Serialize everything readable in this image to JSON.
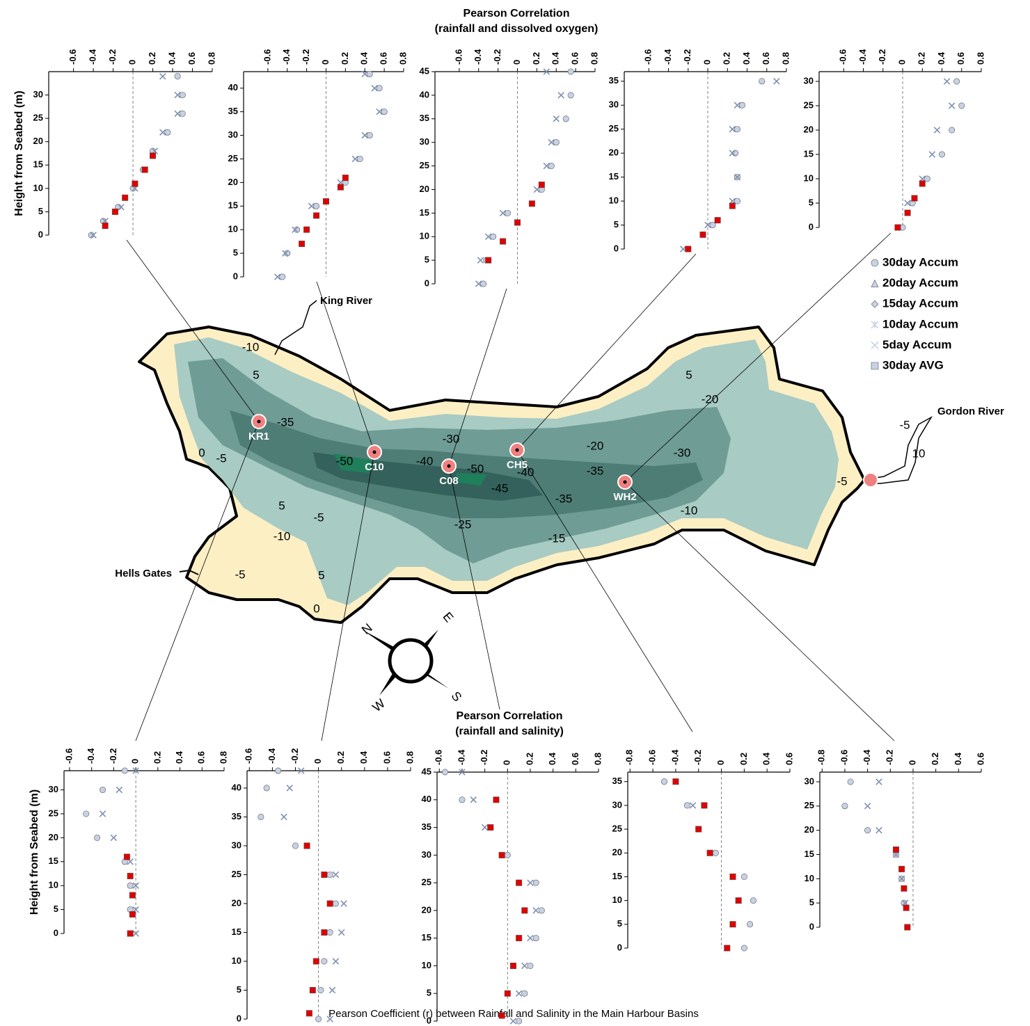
{
  "title_top": [
    "Pearson Correlation",
    "(rainfall and dissolved oxygen)"
  ],
  "title_bottom": [
    "Pearson Correlation",
    "(rainfall and salinity)"
  ],
  "caption": "Pearson Coefficient (r) between Rainfall and Salinity in the Main Harbour Basins",
  "legend": [
    {
      "name": "30day Accum",
      "marker": "circle"
    },
    {
      "name": "20day Accum",
      "marker": "triangle"
    },
    {
      "name": "15day Accum",
      "marker": "diamond"
    },
    {
      "name": "10day Accum",
      "marker": "asterisk"
    },
    {
      "name": "5day Accum",
      "marker": "x"
    },
    {
      "name": "30day AVG",
      "marker": "square"
    }
  ],
  "map": {
    "stations": [
      "KR1",
      "C10",
      "C08",
      "CH5",
      "WH2"
    ],
    "places": [
      "King River",
      "Gordon River",
      "Hells Gates"
    ],
    "contours": [
      "-35",
      "-30",
      "-20",
      "-40",
      "-50",
      "-50",
      "-45",
      "-40",
      "-35",
      "-30",
      "-35",
      "-25",
      "-15",
      "-10",
      "-5",
      "-20",
      "-5",
      "-10",
      "-5",
      "5",
      "-5",
      "5",
      "0",
      "0",
      "5",
      "10",
      "-5",
      "-10",
      "5"
    ],
    "compass": [
      "N",
      "E",
      "S",
      "W"
    ]
  },
  "chart_data": [
    {
      "type": "scatter",
      "ylabel": "Height from Seabed (m)",
      "xlim": [
        -0.85,
        0.8
      ],
      "xticks": [
        -0.6,
        -0.4,
        -0.2,
        0,
        0.2,
        0.4,
        0.6,
        0.8
      ],
      "ylim": [
        0,
        35
      ],
      "yticks": [
        0,
        5,
        10,
        15,
        20,
        25,
        30
      ],
      "series": [
        {
          "name": "30day Accum",
          "color": "#c8d2e6",
          "x": [
            -0.42,
            -0.3,
            -0.15,
            0.0,
            0.1,
            0.2,
            0.35,
            0.5,
            0.5,
            0.45
          ],
          "y": [
            0,
            3,
            6,
            10,
            14,
            18,
            22,
            26,
            30,
            34
          ]
        },
        {
          "name": "5day Accum",
          "color": "#8090b0",
          "x": [
            -0.4,
            -0.28,
            -0.12,
            0.02,
            0.12,
            0.22,
            0.3,
            0.45,
            0.45,
            0.3
          ],
          "y": [
            0,
            3,
            6,
            10,
            14,
            18,
            22,
            26,
            30,
            34
          ]
        },
        {
          "name": "30day AVG",
          "color": "#e00000",
          "x": [
            -0.28,
            -0.18,
            -0.08,
            0.02,
            0.12,
            0.2
          ],
          "y": [
            2,
            5,
            8,
            11,
            14,
            17
          ]
        }
      ]
    },
    {
      "type": "scatter",
      "xlim": [
        -0.85,
        0.8
      ],
      "xticks": [
        -0.6,
        -0.4,
        -0.2,
        0,
        0.2,
        0.4,
        0.6,
        0.8
      ],
      "ylim": [
        0,
        43.5
      ],
      "yticks": [
        0,
        5,
        10,
        15,
        20,
        25,
        30,
        35,
        40
      ],
      "series": [
        {
          "name": "30day Accum",
          "color": "#c8d2e6",
          "x": [
            -0.45,
            -0.4,
            -0.3,
            -0.1,
            0.2,
            0.35,
            0.45,
            0.6,
            0.55,
            0.45
          ],
          "y": [
            0,
            5,
            10,
            15,
            20,
            25,
            30,
            35,
            40,
            43
          ]
        },
        {
          "name": "5day Accum",
          "color": "#8090b0",
          "x": [
            -0.5,
            -0.42,
            -0.32,
            -0.15,
            0.15,
            0.3,
            0.4,
            0.55,
            0.5,
            0.4
          ],
          "y": [
            0,
            5,
            10,
            15,
            20,
            25,
            30,
            35,
            40,
            43
          ]
        },
        {
          "name": "30day AVG",
          "color": "#e00000",
          "x": [
            -0.25,
            -0.2,
            -0.1,
            0.0,
            0.15,
            0.2
          ],
          "y": [
            7,
            10,
            13,
            16,
            19,
            21
          ]
        }
      ]
    },
    {
      "type": "scatter",
      "xlim": [
        -0.85,
        0.8
      ],
      "xticks": [
        -0.6,
        -0.4,
        -0.2,
        0,
        0.2,
        0.4,
        0.6,
        0.8
      ],
      "ylim": [
        0,
        45
      ],
      "yticks": [
        0,
        5,
        10,
        15,
        20,
        25,
        30,
        35,
        40,
        45
      ],
      "series": [
        {
          "name": "30day Accum",
          "color": "#c8d2e6",
          "x": [
            -0.35,
            -0.32,
            -0.25,
            -0.1,
            0.25,
            0.35,
            0.4,
            0.5,
            0.55,
            0.55
          ],
          "y": [
            0,
            5,
            10,
            15,
            20,
            25,
            30,
            35,
            40,
            45
          ]
        },
        {
          "name": "5day Accum",
          "color": "#8090b0",
          "x": [
            -0.4,
            -0.38,
            -0.3,
            -0.15,
            0.2,
            0.3,
            0.35,
            0.4,
            0.45,
            0.3
          ],
          "y": [
            0,
            5,
            10,
            15,
            20,
            25,
            30,
            35,
            40,
            45
          ]
        },
        {
          "name": "30day AVG",
          "color": "#e00000",
          "x": [
            -0.3,
            -0.15,
            0,
            0.15,
            0.25
          ],
          "y": [
            5,
            9,
            13,
            17,
            21
          ]
        }
      ]
    },
    {
      "type": "scatter",
      "xlim": [
        -0.85,
        0.8
      ],
      "xticks": [
        -0.6,
        -0.4,
        -0.2,
        0,
        0.2,
        0.4,
        0.6,
        0.8
      ],
      "ylim": [
        0,
        37
      ],
      "yticks": [
        0,
        5,
        10,
        15,
        20,
        25,
        30,
        35
      ],
      "series": [
        {
          "name": "30day Accum",
          "color": "#c8d2e6",
          "x": [
            -0.2,
            0.05,
            0.3,
            0.3,
            0.28,
            0.3,
            0.35,
            0.55
          ],
          "y": [
            0,
            5,
            10,
            15,
            20,
            25,
            30,
            35
          ]
        },
        {
          "name": "5day Accum",
          "color": "#8090b0",
          "x": [
            -0.25,
            0,
            0.25,
            0.3,
            0.25,
            0.25,
            0.3,
            0.7
          ],
          "y": [
            0,
            5,
            10,
            15,
            20,
            25,
            30,
            35
          ]
        },
        {
          "name": "30day AVG",
          "color": "#e00000",
          "x": [
            -0.2,
            -0.05,
            0.1,
            0.25
          ],
          "y": [
            0,
            3,
            6,
            9
          ]
        }
      ]
    },
    {
      "type": "scatter",
      "xlim": [
        -0.85,
        0.8
      ],
      "xticks": [
        -0.6,
        -0.4,
        -0.2,
        0,
        0.2,
        0.4,
        0.6,
        0.8
      ],
      "ylim": [
        0,
        32
      ],
      "yticks": [
        0,
        5,
        10,
        15,
        20,
        25,
        30
      ],
      "series": [
        {
          "name": "30day Accum",
          "color": "#c8d2e6",
          "x": [
            0,
            0.1,
            0.25,
            0.4,
            0.5,
            0.6,
            0.55
          ],
          "y": [
            0,
            5,
            10,
            15,
            20,
            25,
            30
          ]
        },
        {
          "name": "5day Accum",
          "color": "#8090b0",
          "x": [
            -0.05,
            0.05,
            0.2,
            0.3,
            0.35,
            0.5,
            0.45
          ],
          "y": [
            0,
            5,
            10,
            15,
            20,
            25,
            30
          ]
        },
        {
          "name": "30day AVG",
          "color": "#e00000",
          "x": [
            -0.05,
            0.05,
            0.12,
            0.2
          ],
          "y": [
            0,
            3,
            6,
            9
          ]
        }
      ]
    },
    {
      "type": "scatter",
      "ylabel": "Height from Seabed (m)",
      "xlim": [
        -0.65,
        0.8
      ],
      "xticks": [
        -0.6,
        -0.4,
        -0.2,
        0,
        0.2,
        0.4,
        0.6,
        0.8
      ],
      "ylim": [
        0,
        34
      ],
      "yticks": [
        0,
        5,
        10,
        15,
        20,
        25,
        30
      ],
      "series": [
        {
          "name": "30day Accum",
          "color": "#c8d2e6",
          "x": [
            -0.05,
            -0.05,
            -0.05,
            -0.1,
            -0.35,
            -0.45,
            -0.3,
            -0.1
          ],
          "y": [
            0,
            5,
            10,
            15,
            20,
            25,
            30,
            34
          ]
        },
        {
          "name": "5day Accum",
          "color": "#8090b0",
          "x": [
            0,
            0,
            0,
            -0.05,
            -0.2,
            -0.3,
            -0.15,
            0
          ],
          "y": [
            0,
            5,
            10,
            15,
            20,
            25,
            30,
            34
          ]
        },
        {
          "name": "30day AVG",
          "color": "#e00000",
          "x": [
            -0.05,
            -0.03,
            -0.03,
            -0.05,
            -0.08
          ],
          "y": [
            0,
            4,
            8,
            12,
            16
          ]
        }
      ]
    },
    {
      "type": "scatter",
      "xlim": [
        -0.62,
        0.8
      ],
      "xticks": [
        -0.6,
        -0.4,
        -0.2,
        0,
        0.2,
        0.4,
        0.6,
        0.8
      ],
      "ylim": [
        0,
        43
      ],
      "yticks": [
        0,
        5,
        10,
        15,
        20,
        25,
        30,
        35,
        40
      ],
      "series": [
        {
          "name": "30day Accum",
          "color": "#c8d2e6",
          "x": [
            0,
            0.02,
            0.05,
            0.1,
            0.15,
            0.1,
            -0.2,
            -0.5,
            -0.45,
            -0.35
          ],
          "y": [
            0,
            5,
            10,
            15,
            20,
            25,
            30,
            35,
            40,
            43
          ]
        },
        {
          "name": "5day Accum",
          "color": "#8090b0",
          "x": [
            0.1,
            0.12,
            0.15,
            0.2,
            0.22,
            0.15,
            -0.1,
            -0.3,
            -0.25,
            -0.15
          ],
          "y": [
            0,
            5,
            10,
            15,
            20,
            25,
            30,
            35,
            40,
            43
          ]
        },
        {
          "name": "30day AVG",
          "color": "#e00000",
          "x": [
            -0.08,
            -0.05,
            -0.02,
            0.05,
            0.1,
            0.05,
            -0.1
          ],
          "y": [
            1,
            5,
            10,
            15,
            20,
            25,
            30
          ]
        }
      ]
    },
    {
      "type": "scatter",
      "xlim": [
        -0.62,
        0.8
      ],
      "xticks": [
        -0.6,
        -0.4,
        -0.2,
        0,
        0.2,
        0.4,
        0.6,
        0.8
      ],
      "ylim": [
        0,
        45
      ],
      "yticks": [
        0,
        5,
        10,
        15,
        20,
        25,
        30,
        35,
        40,
        45
      ],
      "series": [
        {
          "name": "30day Accum",
          "color": "#c8d2e6",
          "x": [
            0.1,
            0.15,
            0.2,
            0.25,
            0.3,
            0.25,
            0.0,
            -0.15,
            -0.4,
            -0.55
          ],
          "y": [
            0,
            5,
            10,
            15,
            20,
            25,
            30,
            35,
            40,
            45
          ]
        },
        {
          "name": "5day Accum",
          "color": "#8090b0",
          "x": [
            0.05,
            0.1,
            0.15,
            0.2,
            0.25,
            0.2,
            -0.05,
            -0.2,
            -0.3,
            -0.4
          ],
          "y": [
            0,
            5,
            10,
            15,
            20,
            25,
            30,
            35,
            40,
            45
          ]
        },
        {
          "name": "30day AVG",
          "color": "#e00000",
          "x": [
            -0.05,
            0.0,
            0.05,
            0.1,
            0.15,
            0.1,
            -0.05,
            -0.15,
            -0.1
          ],
          "y": [
            1,
            5,
            10,
            15,
            20,
            25,
            30,
            35,
            40
          ]
        }
      ]
    },
    {
      "type": "scatter",
      "xlim": [
        -0.82,
        0.6
      ],
      "xticks": [
        -0.8,
        -0.6,
        -0.4,
        -0.2,
        0,
        0.2,
        0.4,
        0.6
      ],
      "ylim": [
        0,
        37
      ],
      "yticks": [
        0,
        5,
        10,
        15,
        20,
        25,
        30,
        35
      ],
      "series": [
        {
          "name": "30day Accum",
          "color": "#c8d2e6",
          "x": [
            0.2,
            0.25,
            0.28,
            0.2,
            -0.05,
            -0.2,
            -0.3,
            -0.5
          ],
          "y": [
            0,
            5,
            10,
            15,
            20,
            25,
            30,
            35
          ]
        },
        {
          "name": "5day Accum",
          "color": "#8090b0",
          "x": [
            0.05,
            0.1,
            0.15,
            0.1,
            -0.1,
            -0.2,
            -0.25,
            -0.4
          ],
          "y": [
            0,
            5,
            10,
            15,
            20,
            25,
            30,
            35
          ]
        },
        {
          "name": "30day AVG",
          "color": "#e00000",
          "x": [
            0.05,
            0.1,
            0.15,
            0.1,
            -0.1,
            -0.2,
            -0.15,
            -0.4
          ],
          "y": [
            0,
            5,
            10,
            15,
            20,
            25,
            30,
            35
          ]
        }
      ]
    },
    {
      "type": "scatter",
      "xlim": [
        -0.82,
        0.6
      ],
      "xticks": [
        -0.8,
        -0.6,
        -0.4,
        -0.2,
        0,
        0.2,
        0.4,
        0.6
      ],
      "ylim": [
        0,
        32
      ],
      "yticks": [
        0,
        5,
        10,
        15,
        20,
        25,
        30
      ],
      "series": [
        {
          "name": "30day Accum",
          "color": "#c8d2e6",
          "x": [
            -0.05,
            -0.08,
            -0.1,
            -0.15,
            -0.4,
            -0.6,
            -0.55
          ],
          "y": [
            0,
            5,
            10,
            15,
            20,
            25,
            30
          ]
        },
        {
          "name": "5day Accum",
          "color": "#8090b0",
          "x": [
            -0.05,
            -0.07,
            -0.1,
            -0.15,
            -0.3,
            -0.4,
            -0.3
          ],
          "y": [
            0,
            5,
            10,
            15,
            20,
            25,
            30
          ]
        },
        {
          "name": "30day AVG",
          "color": "#e00000",
          "x": [
            -0.05,
            -0.06,
            -0.08,
            -0.1,
            -0.15
          ],
          "y": [
            0,
            4,
            8,
            12,
            16
          ]
        }
      ]
    }
  ]
}
